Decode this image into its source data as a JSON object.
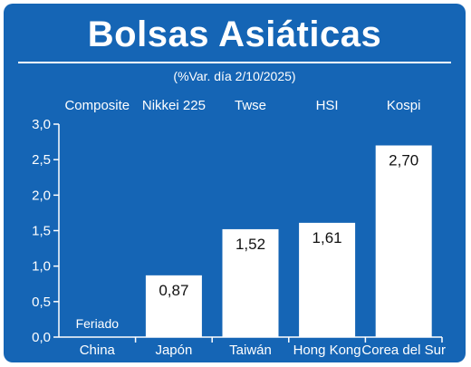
{
  "chart_data": {
    "type": "bar",
    "title": "Bolsas Asiáticas",
    "subtitle": "(%Var. día 2/10/2025)",
    "categories": [
      "China",
      "Japón",
      "Taiwán",
      "Hong Kong",
      "Corea del Sur"
    ],
    "indices": [
      "Composite",
      "Nikkei 225",
      "Twse",
      "HSI",
      "Kospi"
    ],
    "values": [
      null,
      0.87,
      1.52,
      1.61,
      2.7
    ],
    "value_labels": [
      "",
      "0,87",
      "1,52",
      "1,61",
      "2,70"
    ],
    "annotations": [
      "Feriado",
      "",
      "",
      "",
      ""
    ],
    "y_ticks": [
      "0,0",
      "0,5",
      "1,0",
      "1,5",
      "2,0",
      "2,5",
      "3,0"
    ],
    "ylim": [
      0,
      3
    ],
    "grid": false,
    "xlabel": "",
    "ylabel": ""
  },
  "colors": {
    "background": "#1565b5",
    "bars": "#ffffff",
    "text": "#ffffff",
    "value_text": "#111111"
  }
}
